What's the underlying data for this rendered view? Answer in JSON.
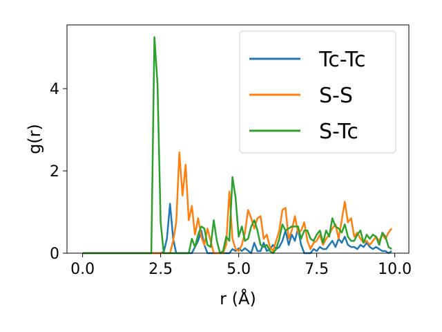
{
  "chart_data": {
    "type": "line",
    "title": "",
    "xlabel": "r (Å)",
    "ylabel": "g(r)",
    "xlim": [
      -0.5,
      10.45
    ],
    "ylim": [
      0,
      5.55
    ],
    "xticks": [
      0.0,
      2.5,
      5.0,
      7.5,
      10.0
    ],
    "xtick_labels": [
      "0.0",
      "2.5",
      "5.0",
      "7.5",
      "10.0"
    ],
    "yticks": [
      0,
      2,
      4
    ],
    "ytick_labels": [
      "0",
      "2",
      "4"
    ],
    "grid": false,
    "legend": "top-right",
    "series": [
      {
        "name": "Tc-Tc",
        "color": "#1f77b4",
        "points": [
          [
            0.0,
            0
          ],
          [
            2.5,
            0
          ],
          [
            2.6,
            0.03
          ],
          [
            2.7,
            0.35
          ],
          [
            2.8,
            1.2
          ],
          [
            2.9,
            0.35
          ],
          [
            3.0,
            0.0
          ],
          [
            3.1,
            0.0
          ],
          [
            3.3,
            0.0
          ],
          [
            3.5,
            0.0
          ],
          [
            3.7,
            0.3
          ],
          [
            3.8,
            0.55
          ],
          [
            3.9,
            0.2
          ],
          [
            4.0,
            0.0
          ],
          [
            4.5,
            0.0
          ],
          [
            4.7,
            0.0
          ],
          [
            4.8,
            0.1
          ],
          [
            4.9,
            0.05
          ],
          [
            5.0,
            0.12
          ],
          [
            5.1,
            0.05
          ],
          [
            5.2,
            0.12
          ],
          [
            5.4,
            0.0
          ],
          [
            5.5,
            0.25
          ],
          [
            5.6,
            0.05
          ],
          [
            5.7,
            0.05
          ],
          [
            5.8,
            0.25
          ],
          [
            5.9,
            0.05
          ],
          [
            6.0,
            0.1
          ],
          [
            6.1,
            0.2
          ],
          [
            6.2,
            0.1
          ],
          [
            6.3,
            0.15
          ],
          [
            6.4,
            0.3
          ],
          [
            6.5,
            0.55
          ],
          [
            6.6,
            0.2
          ],
          [
            6.7,
            0.45
          ],
          [
            6.8,
            0.3
          ],
          [
            6.9,
            0.6
          ],
          [
            7.0,
            0.2
          ],
          [
            7.1,
            0.0
          ],
          [
            7.3,
            0.0
          ],
          [
            7.4,
            0.1
          ],
          [
            7.5,
            0.05
          ],
          [
            7.6,
            0.15
          ],
          [
            7.7,
            0.1
          ],
          [
            7.8,
            0.1
          ],
          [
            7.9,
            0.2
          ],
          [
            8.0,
            0.3
          ],
          [
            8.1,
            0.15
          ],
          [
            8.2,
            0.35
          ],
          [
            8.3,
            0.25
          ],
          [
            8.4,
            0.4
          ],
          [
            8.5,
            0.2
          ],
          [
            8.6,
            0.15
          ],
          [
            8.7,
            0.15
          ],
          [
            8.8,
            0.1
          ],
          [
            8.9,
            0.2
          ],
          [
            9.0,
            0.15
          ],
          [
            9.1,
            0.25
          ],
          [
            9.2,
            0.15
          ],
          [
            9.3,
            0.1
          ],
          [
            9.4,
            0.15
          ],
          [
            9.5,
            0.1
          ],
          [
            9.6,
            0.05
          ],
          [
            9.7,
            0.05
          ],
          [
            9.8,
            0.0
          ],
          [
            9.9,
            0.05
          ]
        ]
      },
      {
        "name": "S-S",
        "color": "#ff7f0e",
        "points": [
          [
            0.0,
            0
          ],
          [
            2.7,
            0
          ],
          [
            2.8,
            0.0
          ],
          [
            2.9,
            0.3
          ],
          [
            3.0,
            0.75
          ],
          [
            3.1,
            2.45
          ],
          [
            3.2,
            1.4
          ],
          [
            3.3,
            2.15
          ],
          [
            3.4,
            0.8
          ],
          [
            3.5,
            1.15
          ],
          [
            3.6,
            0.45
          ],
          [
            3.7,
            0.85
          ],
          [
            3.8,
            0.4
          ],
          [
            3.9,
            0.2
          ],
          [
            4.0,
            0.6
          ],
          [
            4.1,
            0.3
          ],
          [
            4.2,
            0.0
          ],
          [
            4.5,
            0.0
          ],
          [
            4.6,
            0.2
          ],
          [
            4.7,
            1.5
          ],
          [
            4.8,
            0.35
          ],
          [
            4.9,
            0.1
          ],
          [
            5.0,
            0.05
          ],
          [
            5.1,
            0.2
          ],
          [
            5.2,
            0.5
          ],
          [
            5.3,
            1.05
          ],
          [
            5.4,
            0.85
          ],
          [
            5.5,
            0.6
          ],
          [
            5.6,
            0.85
          ],
          [
            5.7,
            0.9
          ],
          [
            5.8,
            0.35
          ],
          [
            5.9,
            0.45
          ],
          [
            6.0,
            0.15
          ],
          [
            6.1,
            0.05
          ],
          [
            6.2,
            0.3
          ],
          [
            6.3,
            0.55
          ],
          [
            6.4,
            1.05
          ],
          [
            6.5,
            1.1
          ],
          [
            6.6,
            0.35
          ],
          [
            6.7,
            0.55
          ],
          [
            6.8,
            0.9
          ],
          [
            6.9,
            0.5
          ],
          [
            7.0,
            0.55
          ],
          [
            7.1,
            0.75
          ],
          [
            7.2,
            0.3
          ],
          [
            7.3,
            0.1
          ],
          [
            7.4,
            0.25
          ],
          [
            7.5,
            0.3
          ],
          [
            7.6,
            0.45
          ],
          [
            7.7,
            0.2
          ],
          [
            7.8,
            0.35
          ],
          [
            7.9,
            0.45
          ],
          [
            8.0,
            0.6
          ],
          [
            8.1,
            0.7
          ],
          [
            8.2,
            0.35
          ],
          [
            8.3,
            0.8
          ],
          [
            8.4,
            1.25
          ],
          [
            8.5,
            0.75
          ],
          [
            8.6,
            0.85
          ],
          [
            8.7,
            0.4
          ],
          [
            8.8,
            0.5
          ],
          [
            8.9,
            0.35
          ],
          [
            9.0,
            0.25
          ],
          [
            9.1,
            0.3
          ],
          [
            9.2,
            0.2
          ],
          [
            9.3,
            0.3
          ],
          [
            9.4,
            0.4
          ],
          [
            9.5,
            0.3
          ],
          [
            9.6,
            0.45
          ],
          [
            9.7,
            0.35
          ],
          [
            9.8,
            0.5
          ],
          [
            9.9,
            0.6
          ]
        ]
      },
      {
        "name": "S-Tc",
        "color": "#2ca02c",
        "points": [
          [
            0.0,
            0
          ],
          [
            2.1,
            0
          ],
          [
            2.2,
            0.0
          ],
          [
            2.3,
            5.25
          ],
          [
            2.4,
            4.1
          ],
          [
            2.5,
            0.75
          ],
          [
            2.6,
            0.0
          ],
          [
            3.3,
            0.0
          ],
          [
            3.4,
            0.0
          ],
          [
            3.5,
            0.35
          ],
          [
            3.6,
            0.15
          ],
          [
            3.7,
            0.45
          ],
          [
            3.8,
            0.65
          ],
          [
            3.9,
            0.6
          ],
          [
            4.0,
            0.2
          ],
          [
            4.1,
            0.15
          ],
          [
            4.2,
            0.8
          ],
          [
            4.3,
            0.3
          ],
          [
            4.4,
            0.0
          ],
          [
            4.5,
            0.05
          ],
          [
            4.6,
            0.4
          ],
          [
            4.7,
            0.3
          ],
          [
            4.8,
            1.85
          ],
          [
            4.9,
            1.35
          ],
          [
            5.0,
            0.4
          ],
          [
            5.1,
            0.65
          ],
          [
            5.2,
            0.3
          ],
          [
            5.3,
            0.35
          ],
          [
            5.4,
            0.65
          ],
          [
            5.5,
            0.8
          ],
          [
            5.6,
            0.55
          ],
          [
            5.7,
            0.2
          ],
          [
            5.8,
            0.15
          ],
          [
            5.9,
            0.2
          ],
          [
            6.0,
            0.05
          ],
          [
            6.1,
            0.0
          ],
          [
            6.2,
            0.1
          ],
          [
            6.3,
            0.35
          ],
          [
            6.4,
            0.7
          ],
          [
            6.5,
            0.55
          ],
          [
            6.6,
            0.6
          ],
          [
            6.7,
            0.65
          ],
          [
            6.8,
            0.65
          ],
          [
            6.9,
            0.65
          ],
          [
            7.0,
            0.35
          ],
          [
            7.1,
            0.55
          ],
          [
            7.2,
            0.55
          ],
          [
            7.3,
            0.35
          ],
          [
            7.4,
            0.3
          ],
          [
            7.5,
            0.45
          ],
          [
            7.6,
            0.55
          ],
          [
            7.7,
            0.25
          ],
          [
            7.8,
            0.55
          ],
          [
            7.9,
            0.4
          ],
          [
            8.0,
            0.85
          ],
          [
            8.1,
            0.65
          ],
          [
            8.2,
            0.6
          ],
          [
            8.3,
            0.5
          ],
          [
            8.4,
            0.7
          ],
          [
            8.5,
            0.4
          ],
          [
            8.6,
            0.3
          ],
          [
            8.7,
            0.3
          ],
          [
            8.8,
            0.45
          ],
          [
            8.9,
            0.55
          ],
          [
            9.0,
            0.25
          ],
          [
            9.1,
            0.45
          ],
          [
            9.2,
            0.35
          ],
          [
            9.3,
            0.45
          ],
          [
            9.4,
            0.4
          ],
          [
            9.5,
            0.2
          ],
          [
            9.6,
            0.5
          ],
          [
            9.7,
            0.4
          ],
          [
            9.8,
            0.15
          ],
          [
            9.9,
            0.1
          ]
        ]
      }
    ]
  }
}
